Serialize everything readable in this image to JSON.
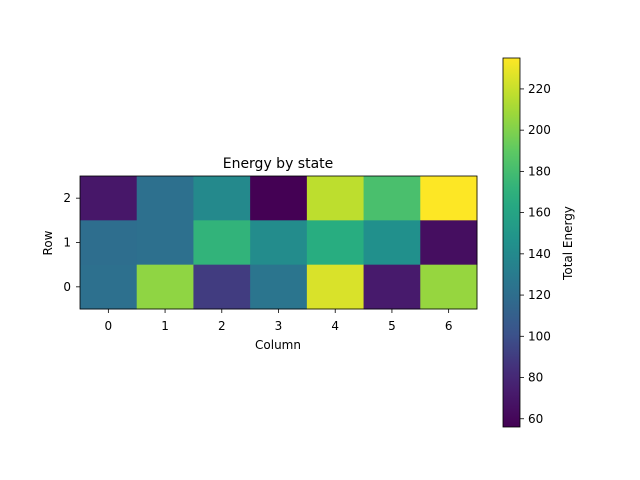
{
  "chart_data": {
    "type": "heatmap",
    "title": "Energy by state",
    "xlabel": "Column",
    "ylabel": "Row",
    "x_ticks": [
      "0",
      "1",
      "2",
      "3",
      "4",
      "5",
      "6"
    ],
    "y_ticks": [
      "2",
      "1",
      "0"
    ],
    "rows": [
      {
        "row": "2",
        "values": [
          70,
          122,
          140,
          56,
          217,
          182,
          235
        ]
      },
      {
        "row": "1",
        "values": [
          120,
          122,
          172,
          142,
          167,
          145,
          64
        ]
      },
      {
        "row": "0",
        "values": [
          122,
          204,
          90,
          125,
          225,
          72,
          206
        ]
      }
    ],
    "colorbar": {
      "label": "Total Energy",
      "range": [
        56,
        235
      ],
      "ticks": [
        "60",
        "80",
        "100",
        "120",
        "140",
        "160",
        "180",
        "200",
        "220"
      ],
      "colormap": "viridis"
    }
  }
}
